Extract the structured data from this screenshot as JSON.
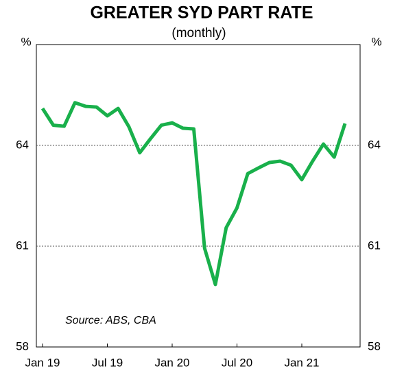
{
  "chart_data": {
    "type": "line",
    "title": "GREATER SYD PART RATE",
    "subtitle": "(monthly)",
    "y_unit": "%",
    "annotation": "Source: ABS, CBA",
    "categories": [
      "Jan 19",
      null,
      null,
      null,
      null,
      null,
      "Jul 19",
      null,
      null,
      null,
      null,
      null,
      "Jan 20",
      null,
      null,
      null,
      null,
      null,
      "Jul 20",
      null,
      null,
      null,
      null,
      null,
      "Jan 21",
      null,
      null,
      null,
      null
    ],
    "series": [
      {
        "name": "Participation rate",
        "color": "#19b04b",
        "values": [
          65.1,
          64.6,
          64.57,
          65.27,
          65.16,
          65.14,
          64.88,
          65.1,
          64.55,
          63.78,
          64.2,
          64.6,
          64.67,
          64.51,
          64.49,
          60.94,
          59.86,
          61.55,
          62.14,
          63.16,
          63.33,
          63.49,
          63.53,
          63.41,
          62.98,
          63.53,
          64.04,
          63.65,
          64.65
        ]
      }
    ],
    "ylim": [
      58,
      67
    ],
    "yticks": [
      58,
      61,
      64
    ],
    "grid": true
  }
}
